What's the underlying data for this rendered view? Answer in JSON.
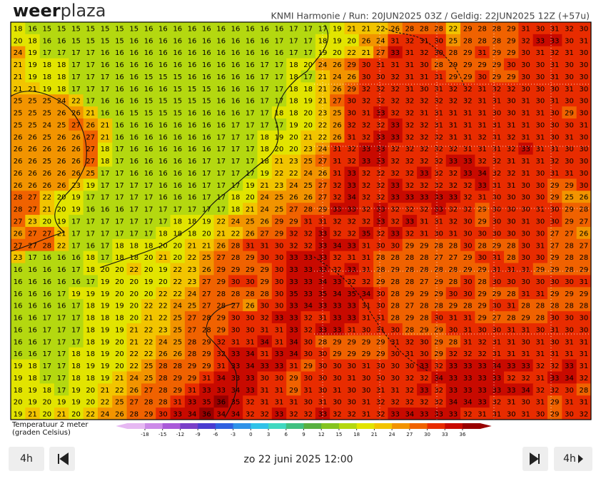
{
  "header": {
    "logo": [
      "weer",
      "plaza"
    ],
    "info": "KNMI Harmonie / Run: 20JUN2025 03Z / Geldig: 22JUN2025 12Z (+57u)"
  },
  "legend": {
    "label": [
      "Temperatuur 2 meter",
      "(graden Celsius)"
    ],
    "ticks": [
      -18,
      -15,
      -12,
      -9,
      -6,
      -3,
      0,
      3,
      6,
      9,
      12,
      15,
      18,
      21,
      24,
      27,
      30,
      33,
      36
    ],
    "colors": [
      "#e6b8f2",
      "#cc8ae8",
      "#a95ad8",
      "#7a40c8",
      "#4a3cd0",
      "#2f60e0",
      "#2f92e8",
      "#30c2e8",
      "#40d8c0",
      "#40c080",
      "#58b040",
      "#84c420",
      "#b4d810",
      "#e2e400",
      "#f2c400",
      "#f29400",
      "#f06200",
      "#e82c00",
      "#c80a00",
      "#980000"
    ]
  },
  "map": {
    "grid": [
      [
        18,
        16,
        15,
        15,
        15,
        15,
        15,
        15,
        15,
        16,
        16,
        16,
        16,
        16,
        16,
        16,
        16,
        16,
        16,
        17,
        17,
        17,
        19,
        21,
        21,
        22,
        26,
        28,
        28,
        28,
        22,
        29,
        28,
        28,
        29,
        31,
        30,
        31,
        32,
        30
      ],
      [
        20,
        18,
        16,
        16,
        15,
        15,
        15,
        15,
        16,
        16,
        16,
        16,
        16,
        16,
        16,
        16,
        16,
        16,
        17,
        17,
        17,
        18,
        19,
        20,
        26,
        24,
        31,
        32,
        31,
        30,
        25,
        28,
        28,
        28,
        29,
        32,
        33,
        33,
        30,
        31
      ],
      [
        24,
        19,
        17,
        17,
        17,
        17,
        16,
        16,
        16,
        16,
        16,
        16,
        16,
        16,
        16,
        16,
        16,
        16,
        16,
        17,
        17,
        19,
        20,
        22,
        21,
        27,
        33,
        31,
        32,
        30,
        28,
        29,
        31,
        29,
        29,
        30,
        31,
        32,
        31,
        30
      ],
      [
        21,
        19,
        18,
        18,
        17,
        17,
        16,
        16,
        16,
        16,
        16,
        16,
        16,
        16,
        16,
        16,
        16,
        17,
        17,
        18,
        20,
        24,
        26,
        29,
        30,
        31,
        31,
        31,
        30,
        28,
        29,
        29,
        29,
        29,
        30,
        30,
        30,
        31,
        30,
        30
      ],
      [
        21,
        19,
        18,
        18,
        17,
        17,
        17,
        16,
        16,
        15,
        15,
        15,
        16,
        16,
        16,
        16,
        16,
        17,
        17,
        18,
        17,
        21,
        24,
        26,
        30,
        30,
        32,
        31,
        31,
        31,
        29,
        29,
        30,
        29,
        29,
        30,
        30,
        31,
        30,
        30
      ],
      [
        21,
        21,
        19,
        18,
        17,
        17,
        17,
        16,
        16,
        16,
        16,
        15,
        15,
        15,
        16,
        16,
        16,
        17,
        17,
        18,
        18,
        21,
        26,
        29,
        32,
        32,
        32,
        31,
        30,
        31,
        32,
        32,
        31,
        32,
        32,
        30,
        30,
        30,
        31,
        30
      ],
      [
        25,
        25,
        25,
        24,
        22,
        17,
        16,
        16,
        16,
        15,
        15,
        15,
        15,
        15,
        16,
        16,
        16,
        17,
        17,
        18,
        19,
        21,
        27,
        30,
        32,
        32,
        32,
        32,
        32,
        32,
        32,
        32,
        31,
        31,
        30,
        31,
        30,
        31,
        30,
        30
      ],
      [
        25,
        25,
        25,
        26,
        26,
        21,
        16,
        16,
        15,
        15,
        15,
        15,
        16,
        16,
        16,
        16,
        17,
        17,
        18,
        18,
        20,
        23,
        25,
        30,
        31,
        33,
        32,
        32,
        31,
        31,
        31,
        31,
        31,
        30,
        30,
        31,
        31,
        30,
        29,
        30
      ],
      [
        25,
        25,
        24,
        25,
        27,
        26,
        21,
        16,
        16,
        16,
        16,
        16,
        16,
        16,
        16,
        17,
        17,
        17,
        17,
        19,
        20,
        22,
        26,
        32,
        32,
        32,
        33,
        32,
        32,
        31,
        31,
        31,
        31,
        31,
        31,
        31,
        30,
        30,
        30,
        31
      ],
      [
        26,
        26,
        25,
        26,
        26,
        27,
        21,
        16,
        16,
        16,
        16,
        16,
        16,
        16,
        17,
        17,
        17,
        18,
        19,
        20,
        21,
        22,
        26,
        31,
        32,
        33,
        33,
        32,
        32,
        32,
        31,
        31,
        32,
        31,
        32,
        31,
        31,
        30,
        31,
        30
      ],
      [
        26,
        26,
        26,
        26,
        26,
        27,
        18,
        17,
        16,
        16,
        16,
        16,
        16,
        16,
        17,
        17,
        17,
        18,
        20,
        20,
        23,
        24,
        31,
        32,
        33,
        33,
        32,
        32,
        32,
        32,
        32,
        31,
        31,
        31,
        32,
        33,
        31,
        31,
        30,
        30
      ],
      [
        26,
        26,
        25,
        26,
        26,
        27,
        18,
        17,
        16,
        16,
        16,
        16,
        16,
        17,
        17,
        17,
        17,
        18,
        21,
        23,
        25,
        27,
        31,
        32,
        33,
        33,
        32,
        32,
        32,
        32,
        33,
        33,
        32,
        32,
        31,
        31,
        31,
        32,
        30,
        30
      ],
      [
        26,
        26,
        26,
        26,
        26,
        25,
        17,
        17,
        16,
        16,
        16,
        16,
        16,
        17,
        17,
        17,
        17,
        19,
        22,
        22,
        24,
        26,
        31,
        33,
        32,
        32,
        32,
        32,
        33,
        32,
        32,
        33,
        34,
        32,
        32,
        31,
        30,
        31,
        31,
        30
      ],
      [
        26,
        26,
        26,
        26,
        23,
        19,
        17,
        17,
        17,
        17,
        16,
        16,
        16,
        17,
        17,
        17,
        19,
        21,
        23,
        24,
        25,
        27,
        32,
        33,
        32,
        32,
        33,
        32,
        32,
        32,
        32,
        32,
        33,
        31,
        31,
        30,
        30,
        29,
        29,
        30
      ],
      [
        28,
        27,
        22,
        20,
        19,
        17,
        17,
        17,
        17,
        17,
        16,
        16,
        16,
        17,
        17,
        18,
        20,
        24,
        25,
        26,
        26,
        27,
        32,
        34,
        32,
        32,
        33,
        33,
        33,
        33,
        33,
        32,
        31,
        30,
        30,
        30,
        30,
        29,
        25,
        26
      ],
      [
        28,
        27,
        21,
        20,
        19,
        16,
        16,
        16,
        17,
        17,
        17,
        17,
        17,
        17,
        17,
        18,
        21,
        24,
        25,
        27,
        28,
        29,
        33,
        33,
        32,
        33,
        32,
        32,
        32,
        33,
        32,
        32,
        29,
        30,
        30,
        30,
        31,
        30,
        29,
        28
      ],
      [
        27,
        23,
        20,
        19,
        17,
        17,
        17,
        17,
        17,
        17,
        17,
        18,
        18,
        19,
        22,
        24,
        25,
        26,
        29,
        29,
        31,
        31,
        32,
        32,
        32,
        33,
        32,
        33,
        31,
        31,
        32,
        30,
        29,
        30,
        30,
        31,
        30,
        30,
        29,
        27
      ],
      [
        26,
        27,
        27,
        21,
        17,
        17,
        17,
        17,
        17,
        17,
        18,
        18,
        18,
        20,
        21,
        22,
        26,
        27,
        29,
        32,
        32,
        33,
        32,
        32,
        35,
        32,
        33,
        32,
        31,
        30,
        31,
        30,
        30,
        30,
        30,
        30,
        30,
        27,
        27,
        26
      ],
      [
        27,
        27,
        28,
        22,
        17,
        16,
        17,
        18,
        18,
        18,
        20,
        20,
        21,
        21,
        26,
        28,
        31,
        31,
        30,
        32,
        32,
        33,
        34,
        33,
        31,
        30,
        30,
        29,
        29,
        28,
        28,
        30,
        28,
        29,
        28,
        30,
        31,
        27,
        28,
        27
      ],
      [
        23,
        17,
        16,
        16,
        16,
        18,
        17,
        18,
        18,
        20,
        21,
        20,
        22,
        25,
        27,
        28,
        29,
        30,
        30,
        33,
        33,
        33,
        32,
        31,
        31,
        28,
        28,
        28,
        28,
        27,
        27,
        29,
        30,
        31,
        28,
        30,
        30,
        29,
        28,
        28
      ],
      [
        16,
        16,
        16,
        16,
        17,
        18,
        20,
        20,
        22,
        20,
        19,
        22,
        23,
        26,
        29,
        29,
        29,
        29,
        30,
        33,
        33,
        33,
        32,
        33,
        31,
        28,
        29,
        28,
        28,
        28,
        28,
        29,
        29,
        31,
        31,
        31,
        29,
        29,
        28,
        29
      ],
      [
        16,
        16,
        16,
        16,
        16,
        17,
        19,
        20,
        20,
        19,
        20,
        22,
        23,
        27,
        29,
        30,
        30,
        29,
        30,
        33,
        33,
        34,
        33,
        32,
        32,
        29,
        28,
        28,
        27,
        29,
        28,
        30,
        28,
        30,
        30,
        30,
        30,
        30,
        30,
        31
      ],
      [
        16,
        16,
        16,
        17,
        19,
        19,
        19,
        20,
        20,
        20,
        22,
        22,
        24,
        27,
        28,
        28,
        28,
        28,
        30,
        35,
        33,
        35,
        34,
        35,
        34,
        30,
        28,
        29,
        29,
        29,
        30,
        30,
        29,
        29,
        28,
        31,
        31,
        29,
        29,
        29
      ],
      [
        16,
        16,
        16,
        16,
        17,
        18,
        19,
        19,
        20,
        22,
        22,
        24,
        25,
        27,
        28,
        27,
        26,
        30,
        30,
        33,
        34,
        33,
        33,
        33,
        31,
        30,
        28,
        27,
        28,
        28,
        29,
        28,
        29,
        30,
        31,
        28,
        28,
        28,
        28,
        28
      ],
      [
        16,
        16,
        17,
        17,
        17,
        18,
        18,
        18,
        20,
        21,
        22,
        25,
        27,
        28,
        29,
        30,
        30,
        32,
        33,
        33,
        32,
        31,
        33,
        33,
        31,
        31,
        28,
        29,
        28,
        30,
        31,
        31,
        29,
        27,
        28,
        29,
        28,
        30,
        30,
        30
      ],
      [
        16,
        16,
        17,
        17,
        17,
        18,
        19,
        19,
        21,
        22,
        23,
        25,
        27,
        28,
        29,
        30,
        30,
        31,
        31,
        33,
        32,
        33,
        33,
        31,
        30,
        31,
        30,
        28,
        29,
        29,
        30,
        31,
        30,
        30,
        31,
        31,
        30,
        31,
        30,
        30
      ],
      [
        16,
        16,
        17,
        17,
        17,
        18,
        19,
        20,
        21,
        22,
        24,
        25,
        28,
        29,
        32,
        31,
        31,
        34,
        31,
        34,
        30,
        28,
        29,
        29,
        29,
        29,
        31,
        32,
        30,
        29,
        28,
        31,
        32,
        31,
        31,
        30,
        31,
        30,
        31,
        31
      ],
      [
        16,
        16,
        17,
        17,
        18,
        18,
        19,
        20,
        22,
        22,
        26,
        26,
        28,
        29,
        32,
        33,
        34,
        31,
        33,
        34,
        30,
        30,
        29,
        29,
        29,
        29,
        30,
        31,
        30,
        29,
        32,
        32,
        32,
        31,
        31,
        31,
        31,
        31,
        31,
        31
      ],
      [
        19,
        18,
        17,
        17,
        18,
        19,
        19,
        20,
        22,
        25,
        28,
        28,
        29,
        29,
        31,
        33,
        34,
        33,
        33,
        31,
        29,
        30,
        30,
        30,
        31,
        30,
        30,
        30,
        33,
        32,
        33,
        33,
        33,
        34,
        33,
        33,
        32,
        32,
        33,
        31
      ],
      [
        19,
        18,
        17,
        17,
        18,
        18,
        19,
        21,
        24,
        25,
        28,
        29,
        29,
        31,
        34,
        33,
        33,
        30,
        30,
        29,
        30,
        30,
        30,
        31,
        30,
        30,
        30,
        32,
        32,
        34,
        33,
        33,
        33,
        33,
        32,
        32,
        31,
        33,
        34,
        32
      ],
      [
        18,
        19,
        18,
        17,
        19,
        20,
        21,
        22,
        26,
        27,
        28,
        29,
        31,
        33,
        33,
        34,
        33,
        31,
        31,
        29,
        31,
        30,
        31,
        30,
        30,
        31,
        31,
        32,
        33,
        32,
        33,
        33,
        33,
        33,
        33,
        34,
        32,
        32,
        30,
        28
      ],
      [
        20,
        19,
        20,
        19,
        19,
        20,
        22,
        25,
        27,
        28,
        28,
        31,
        33,
        35,
        36,
        35,
        32,
        31,
        31,
        31,
        30,
        31,
        30,
        30,
        31,
        32,
        32,
        32,
        32,
        32,
        34,
        34,
        33,
        32,
        31,
        30,
        31,
        29,
        31,
        31
      ],
      [
        19,
        21,
        20,
        21,
        20,
        22,
        24,
        26,
        28,
        29,
        30,
        33,
        34,
        36,
        34,
        34,
        32,
        32,
        33,
        32,
        32,
        33,
        32,
        32,
        31,
        32,
        33,
        34,
        33,
        33,
        33,
        32,
        31,
        31,
        30,
        31,
        30,
        29,
        30,
        32
      ]
    ]
  },
  "controls": {
    "step_left": "4h",
    "date": "zo 22 juni 2025 12:00",
    "step_right": "4h"
  }
}
